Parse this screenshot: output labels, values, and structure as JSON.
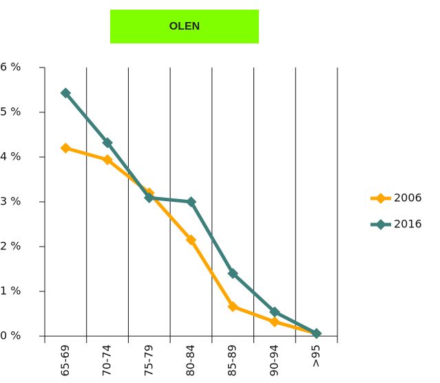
{
  "chart_data": {
    "type": "line",
    "title": "OLEN",
    "categories": [
      "65-69",
      "70-74",
      "75-79",
      "80-84",
      "85-89",
      "90-94",
      ">95"
    ],
    "series": [
      {
        "name": "2006",
        "color": "#ffa500",
        "values": [
          4.2,
          3.94,
          3.2,
          2.15,
          0.66,
          0.32,
          0.06
        ]
      },
      {
        "name": "2016",
        "color": "#3d7f7a",
        "values": [
          5.43,
          4.32,
          3.09,
          3.0,
          1.4,
          0.54,
          0.06
        ]
      }
    ],
    "ylim": [
      0,
      6
    ],
    "yticks": [
      {
        "value": 0,
        "label": "0 %"
      },
      {
        "value": 1,
        "label": "1 %"
      },
      {
        "value": 2,
        "label": "2 %"
      },
      {
        "value": 3,
        "label": "3 %"
      },
      {
        "value": 4,
        "label": "4 %"
      },
      {
        "value": 5,
        "label": "5 %"
      },
      {
        "value": 6,
        "label": "6 %"
      }
    ],
    "legend": "right"
  }
}
